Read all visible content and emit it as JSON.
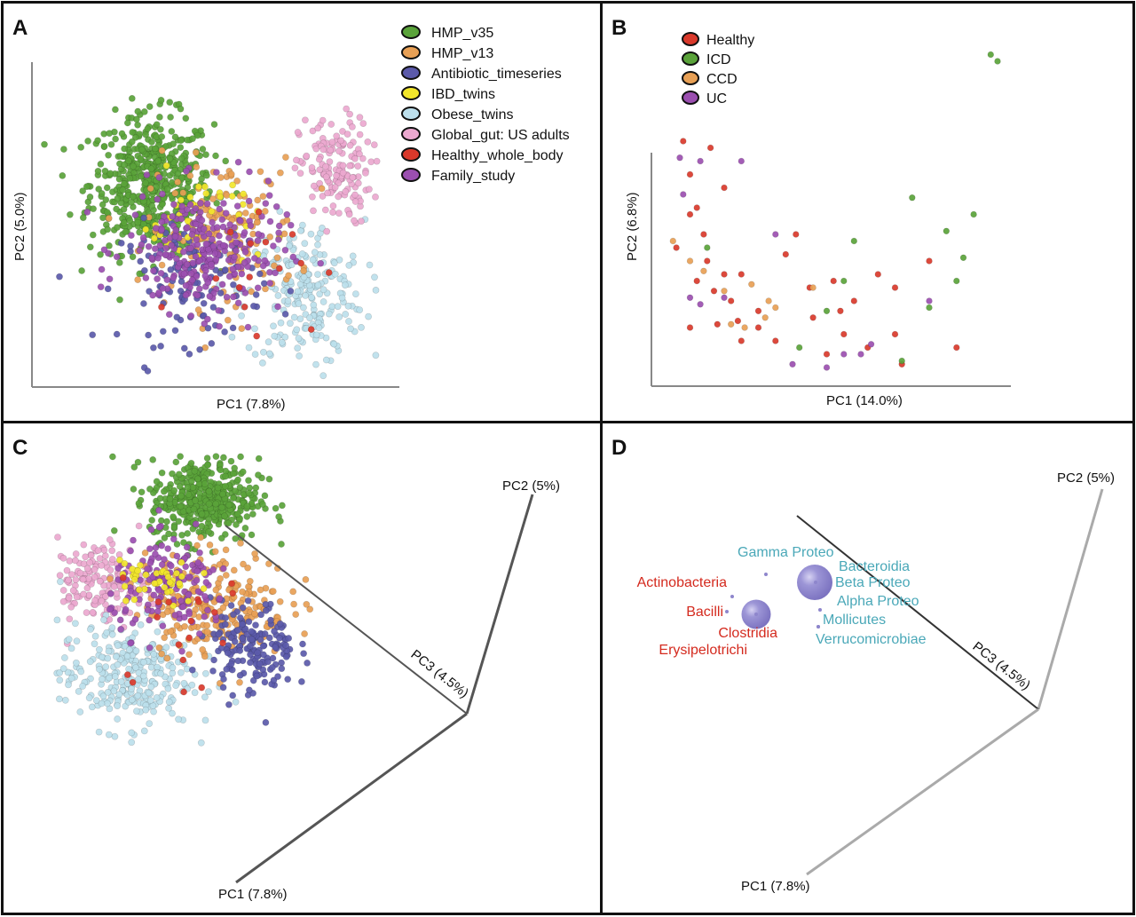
{
  "chart_data": [
    {
      "panel": "A",
      "type": "scatter",
      "xlabel": "PC1 (7.8%)",
      "ylabel": "PC2 (5.0%)",
      "legend_position": "top-right",
      "series": [
        {
          "name": "HMP_v35",
          "color": "#5aa33a",
          "center": [
            -0.55,
            0.45
          ],
          "spread": [
            0.26,
            0.28
          ],
          "n": 520
        },
        {
          "name": "HMP_v13",
          "color": "#e8a055",
          "center": [
            0.05,
            0.05
          ],
          "spread": [
            0.32,
            0.3
          ],
          "n": 160
        },
        {
          "name": "Antibiotic_timeseries",
          "color": "#5b5aaa",
          "center": [
            -0.2,
            -0.35
          ],
          "spread": [
            0.3,
            0.25
          ],
          "n": 120
        },
        {
          "name": "IBD_twins",
          "color": "#f2e62b",
          "center": [
            -0.15,
            0.15
          ],
          "spread": [
            0.25,
            0.2
          ],
          "n": 40
        },
        {
          "name": "Obese_twins",
          "color": "#bcdfec",
          "center": [
            0.75,
            -0.45
          ],
          "spread": [
            0.25,
            0.3
          ],
          "n": 220
        },
        {
          "name": "Global_gut: US adults",
          "color": "#eba8cf",
          "center": [
            1.0,
            0.55
          ],
          "spread": [
            0.15,
            0.22
          ],
          "n": 150
        },
        {
          "name": "Healthy_whole_body",
          "color": "#d9392b",
          "center": [
            0.3,
            -0.1
          ],
          "spread": [
            0.3,
            0.3
          ],
          "n": 15
        },
        {
          "name": "Family_study",
          "color": "#9b4fb0",
          "center": [
            -0.1,
            -0.1
          ],
          "spread": [
            0.33,
            0.25
          ],
          "n": 260
        }
      ]
    },
    {
      "panel": "B",
      "type": "scatter",
      "xlabel": "PC1 (14.0%)",
      "ylabel": "PC2 (6.8%)",
      "legend_position": "top-left",
      "series": [
        {
          "name": "Healthy",
          "color": "#d9392b"
        },
        {
          "name": "ICD",
          "color": "#5aa33a"
        },
        {
          "name": "CCD",
          "color": "#e8a055"
        },
        {
          "name": "UC",
          "color": "#9b4fb0"
        }
      ],
      "points": [
        [
          "Healthy",
          0.08,
          0.72
        ],
        [
          "Healthy",
          0.16,
          0.7
        ],
        [
          "Healthy",
          0.1,
          0.62
        ],
        [
          "Healthy",
          0.12,
          0.52
        ],
        [
          "Healthy",
          0.1,
          0.5
        ],
        [
          "Healthy",
          0.2,
          0.58
        ],
        [
          "Healthy",
          0.14,
          0.44
        ],
        [
          "Healthy",
          0.06,
          0.4
        ],
        [
          "Healthy",
          0.15,
          0.36
        ],
        [
          "Healthy",
          0.2,
          0.32
        ],
        [
          "Healthy",
          0.12,
          0.3
        ],
        [
          "Healthy",
          0.17,
          0.27
        ],
        [
          "Healthy",
          0.25,
          0.32
        ],
        [
          "Healthy",
          0.22,
          0.24
        ],
        [
          "Healthy",
          0.18,
          0.17
        ],
        [
          "Healthy",
          0.1,
          0.16
        ],
        [
          "Healthy",
          0.25,
          0.12
        ],
        [
          "Healthy",
          0.3,
          0.16
        ],
        [
          "Healthy",
          0.35,
          0.12
        ],
        [
          "Healthy",
          0.45,
          0.28
        ],
        [
          "Healthy",
          0.52,
          0.3
        ],
        [
          "Healthy",
          0.58,
          0.24
        ],
        [
          "Healthy",
          0.65,
          0.32
        ],
        [
          "Healthy",
          0.7,
          0.28
        ],
        [
          "Healthy",
          0.8,
          0.36
        ],
        [
          "Healthy",
          0.46,
          0.19
        ],
        [
          "Healthy",
          0.62,
          0.1
        ],
        [
          "Healthy",
          0.55,
          0.14
        ],
        [
          "Healthy",
          0.7,
          0.14
        ],
        [
          "Healthy",
          0.88,
          0.1
        ],
        [
          "Healthy",
          0.38,
          0.38
        ],
        [
          "Healthy",
          0.54,
          0.21
        ],
        [
          "Healthy",
          0.72,
          0.05
        ],
        [
          "Healthy",
          0.3,
          0.21
        ],
        [
          "Healthy",
          0.41,
          0.44
        ],
        [
          "Healthy",
          0.24,
          0.18
        ],
        [
          "Healthy",
          0.5,
          0.08
        ],
        [
          "ICD",
          0.98,
          0.98
        ],
        [
          "ICD",
          1.0,
          0.96
        ],
        [
          "ICD",
          0.75,
          0.55
        ],
        [
          "ICD",
          0.85,
          0.45
        ],
        [
          "ICD",
          0.9,
          0.37
        ],
        [
          "ICD",
          0.93,
          0.5
        ],
        [
          "ICD",
          0.58,
          0.42
        ],
        [
          "ICD",
          0.55,
          0.3
        ],
        [
          "ICD",
          0.5,
          0.21
        ],
        [
          "ICD",
          0.42,
          0.1
        ],
        [
          "ICD",
          0.72,
          0.06
        ],
        [
          "ICD",
          0.88,
          0.3
        ],
        [
          "ICD",
          0.8,
          0.22
        ],
        [
          "ICD",
          0.15,
          0.4
        ],
        [
          "CCD",
          0.05,
          0.42
        ],
        [
          "CCD",
          0.1,
          0.36
        ],
        [
          "CCD",
          0.2,
          0.27
        ],
        [
          "CCD",
          0.28,
          0.29
        ],
        [
          "CCD",
          0.33,
          0.24
        ],
        [
          "CCD",
          0.35,
          0.22
        ],
        [
          "CCD",
          0.22,
          0.17
        ],
        [
          "CCD",
          0.32,
          0.19
        ],
        [
          "CCD",
          0.46,
          0.28
        ],
        [
          "CCD",
          0.26,
          0.16
        ],
        [
          "CCD",
          0.14,
          0.33
        ],
        [
          "UC",
          0.07,
          0.67
        ],
        [
          "UC",
          0.13,
          0.66
        ],
        [
          "UC",
          0.25,
          0.66
        ],
        [
          "UC",
          0.35,
          0.44
        ],
        [
          "UC",
          0.1,
          0.25
        ],
        [
          "UC",
          0.13,
          0.23
        ],
        [
          "UC",
          0.2,
          0.25
        ],
        [
          "UC",
          0.4,
          0.05
        ],
        [
          "UC",
          0.5,
          0.04
        ],
        [
          "UC",
          0.55,
          0.08
        ],
        [
          "UC",
          0.6,
          0.08
        ],
        [
          "UC",
          0.8,
          0.24
        ],
        [
          "UC",
          0.08,
          0.56
        ],
        [
          "UC",
          0.63,
          0.11
        ]
      ]
    },
    {
      "panel": "C",
      "type": "scatter",
      "axes": [
        "PC2 (5%)",
        "PC3 (4.5%)",
        "PC1 (7.8%)"
      ],
      "series": [
        {
          "name": "HMP_v35",
          "color": "#5aa33a",
          "center": [
            0.46,
            0.83
          ],
          "spread": [
            0.09,
            0.07
          ],
          "n": 420
        },
        {
          "name": "Global_gut: US adults",
          "color": "#eba8cf",
          "center": [
            0.1,
            0.55
          ],
          "spread": [
            0.09,
            0.07
          ],
          "n": 170
        },
        {
          "name": "Obese_twins",
          "color": "#bcdfec",
          "center": [
            0.2,
            0.23
          ],
          "spread": [
            0.11,
            0.09
          ],
          "n": 280
        },
        {
          "name": "HMP_v13",
          "color": "#e8a055",
          "center": [
            0.5,
            0.48
          ],
          "spread": [
            0.12,
            0.09
          ],
          "n": 230
        },
        {
          "name": "Antibiotic_timeseries",
          "color": "#5b5aaa",
          "center": [
            0.62,
            0.32
          ],
          "spread": [
            0.07,
            0.08
          ],
          "n": 170
        },
        {
          "name": "Family_study",
          "color": "#9b4fb0",
          "center": [
            0.35,
            0.53
          ],
          "spread": [
            0.1,
            0.08
          ],
          "n": 160
        },
        {
          "name": "IBD_twins",
          "color": "#f2e62b",
          "center": [
            0.3,
            0.56
          ],
          "spread": [
            0.07,
            0.05
          ],
          "n": 40
        },
        {
          "name": "Healthy_whole_body",
          "color": "#d9392b",
          "center": [
            0.35,
            0.35
          ],
          "spread": [
            0.15,
            0.1
          ],
          "n": 18
        }
      ]
    },
    {
      "panel": "D",
      "type": "scatter",
      "axes": [
        "PC2 (5%)",
        "PC3 (4.5%)",
        "PC1 (7.8%)"
      ],
      "taxa": [
        {
          "name": "Gamma Proteo",
          "group": "blue",
          "weight": 0.02
        },
        {
          "name": "Bacteroidia",
          "group": "blue",
          "weight": 1.0
        },
        {
          "name": "Beta Proteo",
          "group": "blue",
          "weight": 0.02
        },
        {
          "name": "Alpha Proteo",
          "group": "blue",
          "weight": 0.02
        },
        {
          "name": "Mollicutes",
          "group": "blue",
          "weight": 0.02
        },
        {
          "name": "Verrucomicrobiae",
          "group": "blue",
          "weight": 0.02
        },
        {
          "name": "Actinobacteria",
          "group": "red",
          "weight": 0.02
        },
        {
          "name": "Bacilli",
          "group": "red",
          "weight": 0.02
        },
        {
          "name": "Clostridia",
          "group": "red",
          "weight": 0.75
        },
        {
          "name": "Erysipelotrichi",
          "group": "red",
          "weight": 0.02
        }
      ],
      "colors": {
        "blue": "#4aa8b8",
        "red": "#d42a1e",
        "bubble": "#8e86cc"
      }
    }
  ],
  "panels": {
    "a": "A",
    "b": "B",
    "c": "C",
    "d": "D"
  }
}
